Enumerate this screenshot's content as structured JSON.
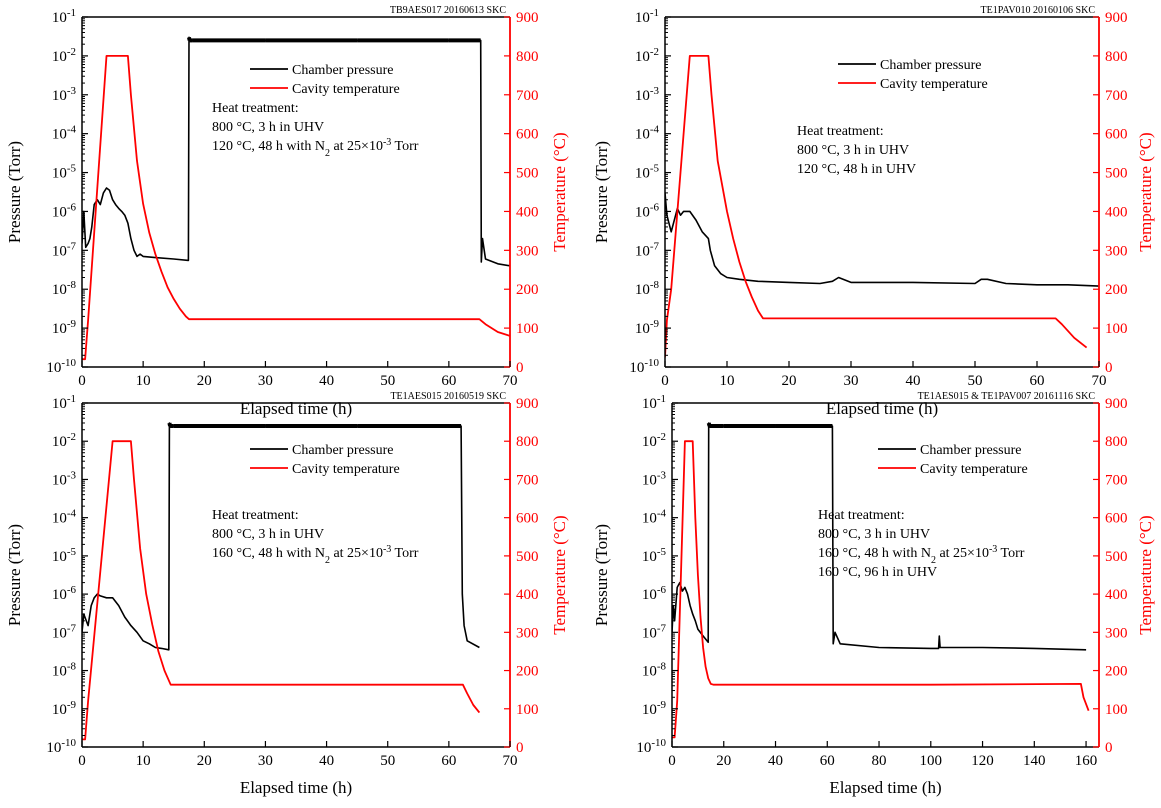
{
  "panels": [
    {
      "id": "TB9AES017 20160613 SKC",
      "chart_data": {
        "type": "line",
        "id_label": "TB9AES017 20160613 SKC",
        "xlabel": "Elapsed time (h)",
        "ylabel_left": "Pressure (Torr)",
        "ylabel_right": "Temperature (°C)",
        "xlim": [
          0,
          70
        ],
        "xticks": [
          0,
          10,
          20,
          30,
          40,
          50,
          60,
          70
        ],
        "ylim_left_log10": [
          -10,
          -1
        ],
        "ylim_right": [
          0,
          900
        ],
        "yticks_right": [
          0,
          100,
          200,
          300,
          400,
          500,
          600,
          700,
          800,
          900
        ],
        "legend": [
          "Chamber pressure",
          "Cavity temperature"
        ],
        "annotation": [
          "Heat treatment:",
          "800 °C, 3 h in UHV",
          "120 °C, 48 h with N2 at 25×10-3 Torr"
        ],
        "series": [
          {
            "name": "Chamber pressure",
            "color": "#000000",
            "axis": "left-log",
            "x": [
              0,
              0.3,
              0.6,
              1,
              1.3,
              1.6,
              2,
              2.5,
              3,
              3.5,
              4,
              4.5,
              5,
              5.5,
              6,
              6.5,
              7,
              7.5,
              8,
              8.5,
              9,
              9.5,
              10,
              12,
              15,
              17.4,
              17.5,
              17.6,
              18,
              30,
              45,
              60,
              65.2,
              65.3,
              65.5,
              66,
              68,
              70
            ],
            "y": [
              1.5e-07,
              1e-06,
              1.2e-07,
              1.5e-07,
              2e-07,
              4e-07,
              1.5e-06,
              2e-06,
              1.5e-06,
              3e-06,
              4e-06,
              3.5e-06,
              2e-06,
              1.5e-06,
              1.2e-06,
              1e-06,
              8e-07,
              5e-07,
              2e-07,
              1e-07,
              7e-08,
              8e-08,
              7e-08,
              6.5e-08,
              6e-08,
              5.5e-08,
              0.03,
              0.025,
              0.025,
              0.025,
              0.025,
              0.025,
              0.025,
              5e-08,
              2e-07,
              6e-08,
              4.5e-08,
              4e-08
            ]
          },
          {
            "name": "Cavity temperature",
            "color": "#ff0000",
            "axis": "right",
            "x": [
              0,
              0.5,
              1,
              4,
              5,
              7.5,
              8,
              9,
              10,
              11,
              12,
              13,
              14,
              15,
              16,
              17,
              17.5,
              65,
              66,
              68,
              70
            ],
            "y": [
              20,
              20,
              120,
              800,
              800,
              800,
              700,
              530,
              420,
              345,
              290,
              245,
              205,
              175,
              150,
              130,
              123,
              123,
              110,
              90,
              80
            ]
          }
        ]
      }
    },
    {
      "id": "TE1PAV010 20160106 SKC",
      "chart_data": {
        "type": "line",
        "id_label": "TE1PAV010 20160106 SKC",
        "xlabel": "Elapsed time (h)",
        "ylabel_left": "Pressure (Torr)",
        "ylabel_right": "Temperature (°C)",
        "xlim": [
          0,
          70
        ],
        "xticks": [
          0,
          10,
          20,
          30,
          40,
          50,
          60,
          70
        ],
        "ylim_left_log10": [
          -10,
          -1
        ],
        "ylim_right": [
          0,
          900
        ],
        "yticks_right": [
          0,
          100,
          200,
          300,
          400,
          500,
          600,
          700,
          800,
          900
        ],
        "legend": [
          "Chamber pressure",
          "Cavity temperature"
        ],
        "annotation": [
          "Heat treatment:",
          "800 °C, 3 h in UHV",
          "120 °C, 48 h in UHV"
        ],
        "series": [
          {
            "name": "Chamber pressure",
            "color": "#000000",
            "axis": "left-log",
            "x": [
              0,
              0.3,
              1,
              2,
              2.5,
              3,
              4,
              5,
              6,
              7,
              7.3,
              8,
              9,
              10,
              12,
              15,
              20,
              25,
              27,
              28,
              30,
              40,
              50,
              51,
              52,
              55,
              60,
              65,
              70
            ],
            "y": [
              3e-06,
              8e-07,
              3e-07,
              1.2e-06,
              8e-07,
              1e-06,
              1e-06,
              6e-07,
              3e-07,
              2e-07,
              1e-07,
              4e-08,
              2.5e-08,
              2e-08,
              1.8e-08,
              1.6e-08,
              1.5e-08,
              1.4e-08,
              1.6e-08,
              2e-08,
              1.5e-08,
              1.5e-08,
              1.4e-08,
              1.8e-08,
              1.8e-08,
              1.4e-08,
              1.3e-08,
              1.3e-08,
              1.2e-08
            ]
          },
          {
            "name": "Cavity temperature",
            "color": "#ff0000",
            "axis": "right",
            "x": [
              0,
              0.3,
              1,
              4,
              5,
              7,
              7.5,
              8.5,
              10,
              11,
              12,
              13,
              14,
              15,
              15.8,
              63,
              64,
              66,
              68
            ],
            "y": [
              25,
              120,
              200,
              800,
              800,
              800,
              700,
              530,
              400,
              330,
              270,
              220,
              180,
              145,
              125,
              125,
              110,
              75,
              50
            ]
          }
        ]
      }
    },
    {
      "id": "TE1AES015 20160519 SKC",
      "chart_data": {
        "type": "line",
        "id_label": "TE1AES015 20160519 SKC",
        "xlabel": "Elapsed time (h)",
        "ylabel_left": "Pressure (Torr)",
        "ylabel_right": "Temperature (°C)",
        "xlim": [
          0,
          70
        ],
        "xticks": [
          0,
          10,
          20,
          30,
          40,
          50,
          60,
          70
        ],
        "ylim_left_log10": [
          -10,
          -1
        ],
        "ylim_right": [
          0,
          900
        ],
        "yticks_right": [
          0,
          100,
          200,
          300,
          400,
          500,
          600,
          700,
          800,
          900
        ],
        "legend": [
          "Chamber pressure",
          "Cavity temperature"
        ],
        "annotation": [
          "Heat treatment:",
          "800 °C, 3 h in UHV",
          "160 °C, 48 h with N2 at 25×10-3 Torr"
        ],
        "series": [
          {
            "name": "Chamber pressure",
            "color": "#000000",
            "axis": "left-log",
            "x": [
              0,
              0.3,
              1,
              1.5,
              2,
              2.5,
              3,
              4,
              5,
              6,
              7,
              8,
              9,
              10,
              11,
              12,
              13,
              14.2,
              14.3,
              14.4,
              15,
              30,
              45,
              62,
              62.2,
              62.5,
              63,
              65
            ],
            "y": [
              1e-07,
              3e-07,
              1.5e-07,
              5e-07,
              8e-07,
              1e-06,
              9e-07,
              8e-07,
              8e-07,
              5e-07,
              2.5e-07,
              1.5e-07,
              1e-07,
              6e-08,
              5e-08,
              4e-08,
              3.8e-08,
              3.5e-08,
              0.03,
              0.025,
              0.025,
              0.025,
              0.025,
              0.025,
              1e-06,
              1.5e-07,
              6e-08,
              4e-08
            ]
          },
          {
            "name": "Cavity temperature",
            "color": "#ff0000",
            "axis": "right",
            "x": [
              0,
              0.5,
              1,
              5,
              5.5,
              8,
              8.5,
              9.5,
              10.5,
              11.5,
              12.5,
              13.5,
              14.5,
              62.3,
              63,
              64,
              65
            ],
            "y": [
              20,
              20,
              120,
              800,
              800,
              800,
              700,
              520,
              400,
              320,
              250,
              200,
              163,
              163,
              140,
              110,
              90
            ]
          }
        ]
      }
    },
    {
      "id": "TE1AES015 & TE1PAV007 20161116 SKC",
      "chart_data": {
        "type": "line",
        "id_label": "TE1AES015 & TE1PAV007 20161116 SKC",
        "xlabel": "Elapsed time (h)",
        "ylabel_left": "Pressure (Torr)",
        "ylabel_right": "Temperature (°C)",
        "xlim": [
          0,
          165
        ],
        "xticks": [
          0,
          20,
          40,
          60,
          80,
          100,
          120,
          140,
          160
        ],
        "ylim_left_log10": [
          -10,
          -1
        ],
        "ylim_right": [
          0,
          900
        ],
        "yticks_right": [
          0,
          100,
          200,
          300,
          400,
          500,
          600,
          700,
          800,
          900
        ],
        "legend": [
          "Chamber pressure",
          "Cavity temperature"
        ],
        "annotation": [
          "Heat treatment:",
          "800 °C, 3 h in UHV",
          "160 °C, 48 h with N2 at 25×10-3 Torr",
          "160 °C, 96 h in UHV"
        ],
        "series": [
          {
            "name": "Chamber pressure",
            "color": "#000000",
            "axis": "left-log",
            "x": [
              0,
              0.5,
              1,
              2,
              3,
              4,
              5,
              6,
              7,
              8,
              9,
              10,
              12,
              14,
              14.2,
              14.5,
              20,
              40,
              62,
              62.3,
              63,
              65,
              80,
              100,
              103,
              103.3,
              103.6,
              105,
              120,
              140,
              160
            ],
            "y": [
              1e-07,
              5e-07,
              2e-07,
              1.5e-06,
              2e-06,
              1.2e-06,
              1.5e-06,
              1e-06,
              5e-07,
              3e-07,
              2e-07,
              1.2e-07,
              8e-08,
              5.5e-08,
              0.03,
              0.025,
              0.025,
              0.025,
              0.025,
              5e-08,
              1e-07,
              5e-08,
              4e-08,
              3.8e-08,
              3.8e-08,
              8e-08,
              4e-08,
              4e-08,
              4e-08,
              3.8e-08,
              3.5e-08
            ]
          },
          {
            "name": "Cavity temperature",
            "color": "#ff0000",
            "axis": "right",
            "x": [
              0,
              1,
              2,
              5,
              6,
              8,
              9,
              10,
              11,
              12,
              13,
              14,
              15,
              16,
              60,
              100,
              158,
              159,
              161
            ],
            "y": [
              25,
              25,
              120,
              800,
              800,
              800,
              600,
              450,
              340,
              260,
              210,
              180,
              165,
              163,
              163,
              163,
              165,
              130,
              95
            ]
          }
        ]
      }
    }
  ]
}
